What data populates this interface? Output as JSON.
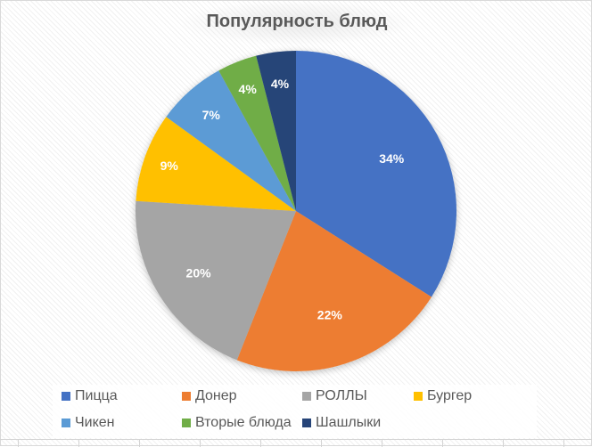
{
  "chart_data": {
    "type": "pie",
    "title": "Популярность блюд",
    "categories": [
      "Пицца",
      "Донер",
      "РОЛЛЫ",
      "Бургер",
      "Чикен",
      "Вторые блюда",
      "Шашлыки"
    ],
    "values": [
      34,
      22,
      20,
      9,
      7,
      4,
      4
    ],
    "labels": [
      "34%",
      "22%",
      "20%",
      "9%",
      "7%",
      "4%",
      "4%"
    ],
    "colors": [
      "#4472C4",
      "#ED7D31",
      "#A5A5A5",
      "#FFC000",
      "#5B9BD5",
      "#70AD47",
      "#264478"
    ],
    "start_angle_deg": 0,
    "direction": "clockwise",
    "legend_position": "bottom",
    "xlabel": "",
    "ylabel": ""
  },
  "legend": {
    "items": [
      {
        "label": "Пицца",
        "color": "#4472C4"
      },
      {
        "label": "Донер",
        "color": "#ED7D31"
      },
      {
        "label": "РОЛЛЫ",
        "color": "#A5A5A5"
      },
      {
        "label": "Бургер",
        "color": "#FFC000"
      },
      {
        "label": "Чикен",
        "color": "#5B9BD5"
      },
      {
        "label": "Вторые блюда",
        "color": "#70AD47"
      },
      {
        "label": "Шашлыки",
        "color": "#264478"
      }
    ]
  }
}
